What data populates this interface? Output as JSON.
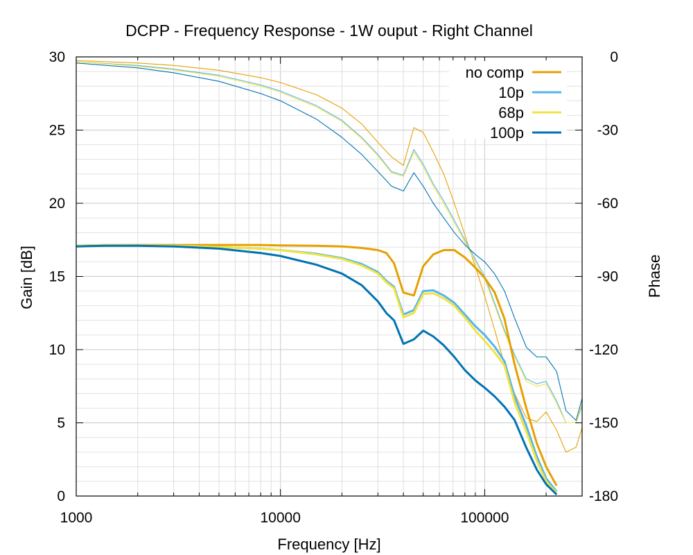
{
  "chart_data": {
    "type": "line",
    "title": "DCPP - Frequency Response - 1W ouput - Right Channel",
    "xlabel": "Frequency [Hz]",
    "ylabel": "Gain [dB]",
    "y2label": "Phase",
    "x_scale": "log",
    "xlim": [
      1000,
      300000
    ],
    "ylim": [
      0,
      30
    ],
    "y2lim": [
      -180,
      0
    ],
    "x_ticks": [
      1000,
      10000,
      100000
    ],
    "x_tick_labels": [
      "1000",
      "10000",
      "100000"
    ],
    "y_ticks": [
      0,
      5,
      10,
      15,
      20,
      25,
      30
    ],
    "y_tick_labels": [
      "0",
      "5",
      "10",
      "15",
      "20",
      "25",
      "30"
    ],
    "y2_ticks": [
      0,
      -30,
      -60,
      -90,
      -120,
      -150,
      -180
    ],
    "y2_tick_labels": [
      "0",
      "-30",
      "-60",
      "-90",
      "-120",
      "-150",
      "-180"
    ],
    "grid": true,
    "legend_position": "top-right",
    "series": [
      {
        "name": "no comp",
        "color": "#e69f00",
        "gain": {
          "x": [
            1000,
            1400,
            2000,
            3000,
            5000,
            8000,
            10000,
            15000,
            20000,
            25000,
            30000,
            33000,
            36000,
            40000,
            45000,
            50000,
            56000,
            63000,
            71000,
            80000,
            90000,
            100000,
            112000,
            125000,
            140000,
            160000,
            180000,
            200000,
            225000
          ],
          "y": [
            17.1,
            17.15,
            17.15,
            17.15,
            17.15,
            17.15,
            17.12,
            17.1,
            17.05,
            16.95,
            16.8,
            16.6,
            15.9,
            13.9,
            13.7,
            15.7,
            16.5,
            16.8,
            16.8,
            16.3,
            15.6,
            14.9,
            13.9,
            12.1,
            9.0,
            6.0,
            3.6,
            2.0,
            0.7
          ]
        },
        "phase": {
          "x": [
            1000,
            2000,
            3000,
            5000,
            8000,
            10000,
            15000,
            20000,
            25000,
            30000,
            35000,
            40000,
            45000,
            50000,
            56000,
            63000,
            71000,
            80000,
            90000,
            100000,
            112000,
            125000,
            140000,
            160000,
            180000,
            200000,
            225000,
            250000,
            280000,
            300000
          ],
          "y": [
            -1.5,
            -2.5,
            -3.5,
            -5.5,
            -8.5,
            -10.5,
            -15.5,
            -21,
            -27.5,
            -35,
            -41,
            -44.5,
            -29,
            -31,
            -39,
            -48,
            -60,
            -73,
            -86,
            -98,
            -112,
            -126,
            -138,
            -148,
            -149.5,
            -145.5,
            -153,
            -162,
            -160,
            -152
          ]
        }
      },
      {
        "name": "10p",
        "color": "#56b4e9",
        "gain": {
          "x": [
            1000,
            1400,
            2000,
            3000,
            5000,
            8000,
            10000,
            15000,
            20000,
            25000,
            30000,
            33000,
            36000,
            40000,
            45000,
            50000,
            56000,
            63000,
            71000,
            80000,
            90000,
            100000,
            112000,
            125000,
            140000,
            160000,
            180000,
            200000,
            225000
          ],
          "y": [
            17.1,
            17.15,
            17.12,
            17.1,
            17.0,
            16.9,
            16.8,
            16.55,
            16.25,
            15.85,
            15.3,
            14.7,
            14.3,
            12.4,
            12.7,
            14.0,
            14.05,
            13.7,
            13.2,
            12.4,
            11.6,
            11.0,
            10.2,
            9.2,
            6.8,
            4.8,
            2.7,
            1.2,
            0.3
          ]
        },
        "phase": {
          "x": [
            1000,
            2000,
            3000,
            5000,
            8000,
            10000,
            15000,
            20000,
            25000,
            30000,
            35000,
            40000,
            45000,
            50000,
            56000,
            63000,
            71000,
            80000,
            90000,
            100000,
            112000,
            125000,
            140000,
            160000,
            180000,
            200000,
            225000,
            250000,
            280000,
            300000
          ],
          "y": [
            -2,
            -3.5,
            -5,
            -7.5,
            -11.5,
            -14,
            -20,
            -26,
            -33,
            -40,
            -47,
            -48.5,
            -38,
            -44,
            -52,
            -59,
            -67,
            -75,
            -83,
            -90,
            -101,
            -112,
            -122,
            -132,
            -134,
            -133,
            -141,
            -150,
            -150,
            -143
          ]
        }
      },
      {
        "name": "68p",
        "color": "#f0e442",
        "gain": {
          "x": [
            1000,
            1400,
            2000,
            3000,
            5000,
            8000,
            10000,
            15000,
            20000,
            25000,
            30000,
            33000,
            36000,
            40000,
            45000,
            50000,
            56000,
            63000,
            71000,
            80000,
            90000,
            100000,
            112000,
            125000,
            140000,
            160000,
            180000,
            200000,
            225000
          ],
          "y": [
            17.1,
            17.15,
            17.12,
            17.1,
            17.0,
            16.9,
            16.8,
            16.5,
            16.2,
            15.75,
            15.2,
            14.6,
            14.2,
            12.2,
            12.5,
            13.8,
            13.85,
            13.5,
            13.0,
            12.2,
            11.3,
            10.6,
            9.8,
            8.9,
            6.4,
            4.4,
            2.4,
            1.0,
            0.2
          ]
        },
        "phase": {
          "x": [
            1000,
            2000,
            3000,
            5000,
            8000,
            10000,
            15000,
            20000,
            25000,
            30000,
            35000,
            40000,
            45000,
            50000,
            56000,
            63000,
            71000,
            80000,
            90000,
            100000,
            112000,
            125000,
            140000,
            160000,
            180000,
            200000,
            225000,
            250000,
            280000,
            300000
          ],
          "y": [
            -2,
            -3.8,
            -5.3,
            -8,
            -12,
            -14.5,
            -20.5,
            -26.5,
            -33.5,
            -40.5,
            -47.5,
            -49,
            -39,
            -45,
            -53,
            -60,
            -68,
            -76,
            -84,
            -91,
            -102,
            -113,
            -123,
            -133,
            -135,
            -134,
            -142,
            -150,
            -150,
            -142
          ]
        }
      },
      {
        "name": "100p",
        "color": "#0072b2",
        "gain": {
          "x": [
            1000,
            1400,
            2000,
            3000,
            5000,
            8000,
            10000,
            15000,
            20000,
            25000,
            30000,
            33000,
            36000,
            40000,
            45000,
            50000,
            56000,
            63000,
            71000,
            80000,
            90000,
            100000,
            112000,
            125000,
            140000,
            160000,
            180000,
            200000,
            225000
          ],
          "y": [
            17.05,
            17.1,
            17.1,
            17.05,
            16.9,
            16.6,
            16.4,
            15.8,
            15.2,
            14.4,
            13.3,
            12.5,
            12.0,
            10.4,
            10.7,
            11.3,
            10.9,
            10.3,
            9.5,
            8.6,
            7.9,
            7.4,
            6.8,
            6.1,
            5.2,
            3.3,
            1.8,
            0.8,
            0.1
          ]
        },
        "phase": {
          "x": [
            1000,
            2000,
            3000,
            5000,
            8000,
            10000,
            15000,
            20000,
            25000,
            30000,
            35000,
            40000,
            45000,
            50000,
            56000,
            63000,
            71000,
            80000,
            90000,
            100000,
            112000,
            125000,
            140000,
            160000,
            180000,
            200000,
            225000,
            250000,
            280000,
            300000
          ],
          "y": [
            -2.5,
            -4.5,
            -6.5,
            -10,
            -15,
            -18,
            -25.5,
            -33,
            -40,
            -47,
            -53,
            -55,
            -47.5,
            -53,
            -60,
            -66,
            -72,
            -77,
            -81,
            -84,
            -89,
            -96,
            -107,
            -119,
            -123,
            -123,
            -129,
            -145,
            -149,
            -140
          ]
        }
      }
    ]
  }
}
